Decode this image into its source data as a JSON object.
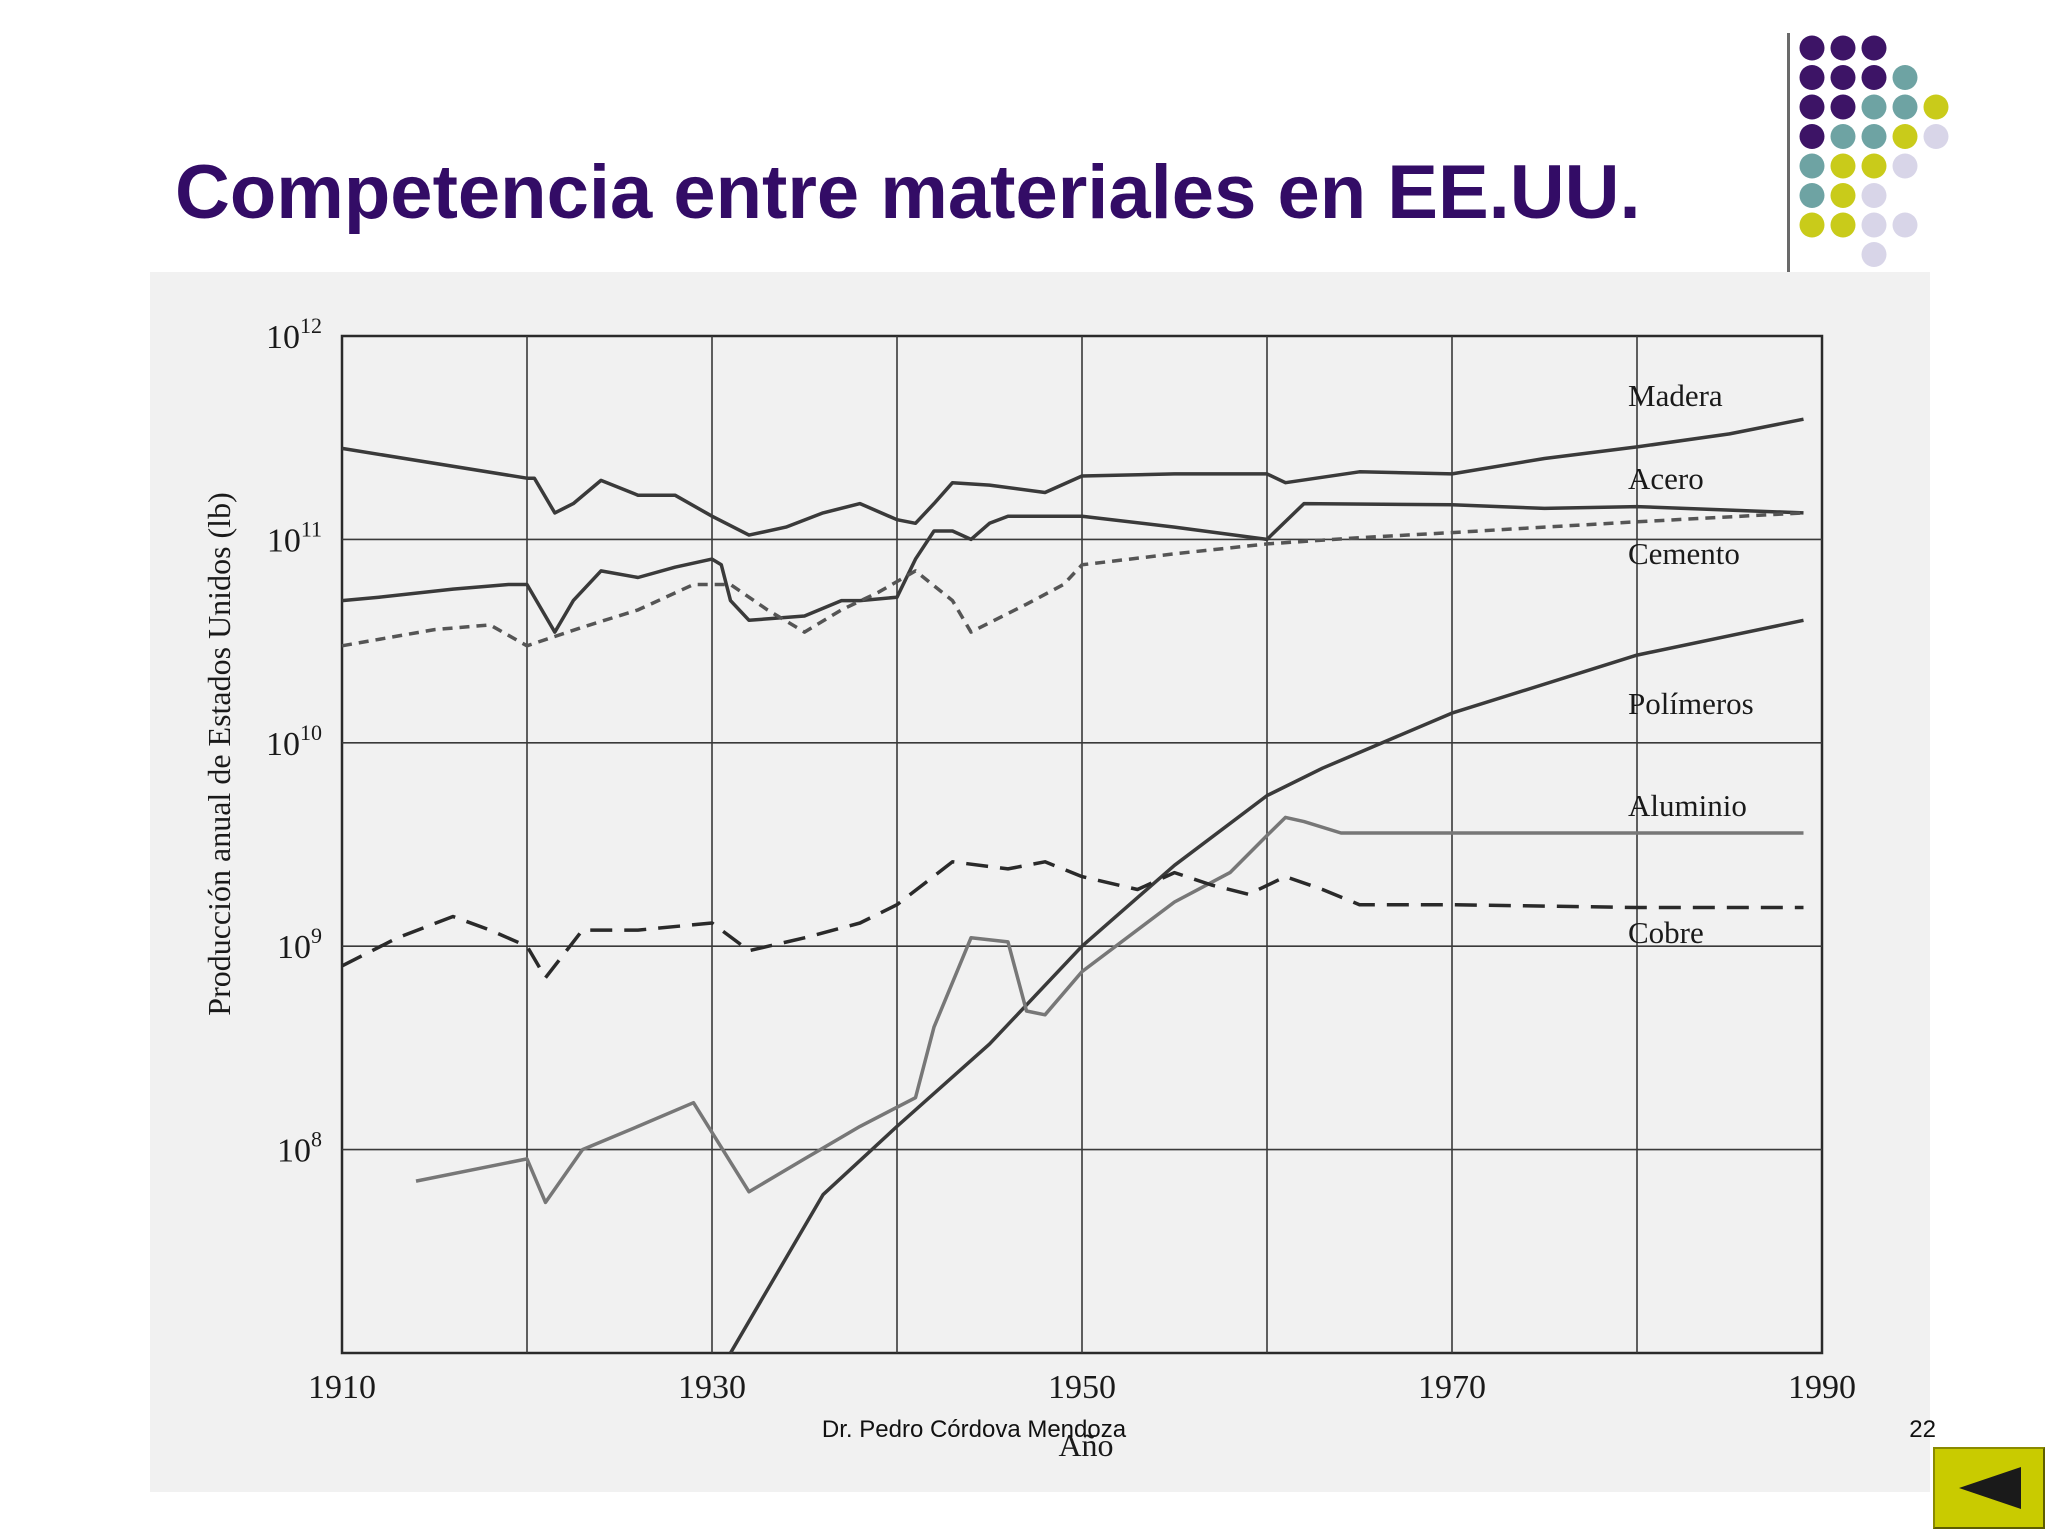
{
  "slide": {
    "title": "Competencia entre materiales en EE.UU.",
    "footer_author": "Dr. Pedro Córdova Mendoza",
    "page_number": "22"
  },
  "colors": {
    "title": "#330c66",
    "dot_palette": [
      "#3d1466",
      "#6ea3a3",
      "#c9cb1a",
      "#d8d5e8"
    ],
    "nav_button": "#c9cb00"
  },
  "nav": {
    "back_icon": "back-triangle-icon"
  },
  "chart_data": {
    "type": "line",
    "title": "",
    "xlabel": "Año",
    "ylabel": "Producción anual de Estados Unidos (lb)",
    "xlim": [
      1910,
      1990
    ],
    "ylim": [
      10000000,
      1000000000000
    ],
    "yscale": "log",
    "x_ticks": [
      "1910",
      "1930",
      "1950",
      "1970",
      "1990"
    ],
    "y_ticks": [
      {
        "base": "10",
        "exp": "8",
        "value": 100000000
      },
      {
        "base": "10",
        "exp": "9",
        "value": 1000000000
      },
      {
        "base": "10",
        "exp": "10",
        "value": 10000000000
      },
      {
        "base": "10",
        "exp": "11",
        "value": 100000000000
      },
      {
        "base": "10",
        "exp": "12",
        "value": 1000000000000
      }
    ],
    "grid": true,
    "series": [
      {
        "name": "Madera",
        "style": "solid",
        "color": "#3a3a3a",
        "points": [
          [
            1910,
            280000000000
          ],
          [
            1920,
            200000000000
          ],
          [
            1920.4,
            200000000000
          ],
          [
            1921.5,
            135000000000
          ],
          [
            1922.5,
            150000000000
          ],
          [
            1924,
            195000000000
          ],
          [
            1926,
            165000000000
          ],
          [
            1928,
            165000000000
          ],
          [
            1930,
            130000000000
          ],
          [
            1932,
            105000000000
          ],
          [
            1934,
            115000000000
          ],
          [
            1936,
            135000000000
          ],
          [
            1938,
            150000000000
          ],
          [
            1940,
            125000000000
          ],
          [
            1941,
            120000000000
          ],
          [
            1942,
            150000000000
          ],
          [
            1943,
            190000000000
          ],
          [
            1945,
            185000000000
          ],
          [
            1948,
            170000000000
          ],
          [
            1950,
            205000000000
          ],
          [
            1955,
            210000000000
          ],
          [
            1960,
            210000000000
          ],
          [
            1961,
            190000000000
          ],
          [
            1965,
            215000000000
          ],
          [
            1970,
            210000000000
          ],
          [
            1975,
            250000000000
          ],
          [
            1980,
            285000000000
          ],
          [
            1985,
            330000000000
          ],
          [
            1989,
            390000000000
          ]
        ]
      },
      {
        "name": "Acero",
        "style": "solid",
        "color": "#3a3a3a",
        "points": [
          [
            1910,
            50000000000
          ],
          [
            1912,
            52000000000
          ],
          [
            1916,
            57000000000
          ],
          [
            1919,
            60000000000
          ],
          [
            1920,
            60000000000
          ],
          [
            1921.5,
            35000000000
          ],
          [
            1922.5,
            50000000000
          ],
          [
            1924,
            70000000000
          ],
          [
            1926,
            65000000000
          ],
          [
            1928,
            73000000000
          ],
          [
            1930,
            80000000000
          ],
          [
            1930.5,
            75000000000
          ],
          [
            1931,
            50000000000
          ],
          [
            1932,
            40000000000
          ],
          [
            1935,
            42000000000
          ],
          [
            1937,
            50000000000
          ],
          [
            1938,
            50000000000
          ],
          [
            1940,
            52000000000
          ],
          [
            1941,
            80000000000
          ],
          [
            1942,
            110000000000
          ],
          [
            1943,
            110000000000
          ],
          [
            1944,
            100000000000
          ],
          [
            1945,
            120000000000
          ],
          [
            1946,
            130000000000
          ],
          [
            1950,
            130000000000
          ],
          [
            1955,
            115000000000
          ],
          [
            1960,
            100000000000
          ],
          [
            1962,
            150000000000
          ],
          [
            1970,
            148000000000
          ],
          [
            1975,
            142000000000
          ],
          [
            1980,
            145000000000
          ],
          [
            1989,
            135000000000
          ]
        ]
      },
      {
        "name": "Cemento",
        "style": "dashed",
        "color": "#555555",
        "points": [
          [
            1910,
            30000000000
          ],
          [
            1915,
            36000000000
          ],
          [
            1918,
            38000000000
          ],
          [
            1920,
            30000000000
          ],
          [
            1923,
            37000000000
          ],
          [
            1926,
            45000000000
          ],
          [
            1929,
            60000000000
          ],
          [
            1931,
            60000000000
          ],
          [
            1933,
            45000000000
          ],
          [
            1935,
            35000000000
          ],
          [
            1937,
            45000000000
          ],
          [
            1939,
            55000000000
          ],
          [
            1941,
            70000000000
          ],
          [
            1943,
            50000000000
          ],
          [
            1944,
            35000000000
          ],
          [
            1947,
            48000000000
          ],
          [
            1949,
            60000000000
          ],
          [
            1950,
            75000000000
          ],
          [
            1955,
            85000000000
          ],
          [
            1960,
            95000000000
          ],
          [
            1965,
            102000000000
          ],
          [
            1970,
            108000000000
          ],
          [
            1975,
            115000000000
          ],
          [
            1980,
            122000000000
          ],
          [
            1989,
            135000000000
          ]
        ]
      },
      {
        "name": "Polímeros",
        "style": "solid",
        "color": "#3a3a3a",
        "points": [
          [
            1931,
            10000000
          ],
          [
            1936,
            60000000
          ],
          [
            1940,
            130000000
          ],
          [
            1945,
            330000000
          ],
          [
            1950,
            1000000000
          ],
          [
            1955,
            2500000000
          ],
          [
            1960,
            5500000000
          ],
          [
            1963,
            7500000000
          ],
          [
            1970,
            14000000000
          ],
          [
            1980,
            27000000000
          ],
          [
            1989,
            40000000000
          ]
        ]
      },
      {
        "name": "Aluminio",
        "style": "solid",
        "color": "#777777",
        "points": [
          [
            1914,
            70000000
          ],
          [
            1920,
            90000000
          ],
          [
            1921,
            55000000
          ],
          [
            1923,
            100000000
          ],
          [
            1926,
            130000000
          ],
          [
            1929,
            170000000
          ],
          [
            1932,
            62000000
          ],
          [
            1935,
            90000000
          ],
          [
            1938,
            130000000
          ],
          [
            1941,
            180000000
          ],
          [
            1942,
            400000000
          ],
          [
            1944,
            1100000000
          ],
          [
            1946,
            1050000000
          ],
          [
            1947,
            480000000
          ],
          [
            1948,
            460000000
          ],
          [
            1950,
            750000000
          ],
          [
            1955,
            1650000000
          ],
          [
            1958,
            2300000000
          ],
          [
            1960,
            3500000000
          ],
          [
            1961,
            4300000000
          ],
          [
            1962,
            4100000000
          ],
          [
            1964,
            3600000000
          ],
          [
            1970,
            3600000000
          ],
          [
            1989,
            3600000000
          ]
        ]
      },
      {
        "name": "Cobre",
        "style": "dashed",
        "color": "#2a2a2a",
        "points": [
          [
            1910,
            800000000
          ],
          [
            1913,
            1100000000
          ],
          [
            1916,
            1400000000
          ],
          [
            1918,
            1200000000
          ],
          [
            1920,
            1000000000
          ],
          [
            1921,
            700000000
          ],
          [
            1923,
            1200000000
          ],
          [
            1926,
            1200000000
          ],
          [
            1930,
            1300000000
          ],
          [
            1932,
            950000000
          ],
          [
            1935,
            1100000000
          ],
          [
            1938,
            1300000000
          ],
          [
            1940,
            1600000000
          ],
          [
            1943,
            2600000000
          ],
          [
            1946,
            2400000000
          ],
          [
            1948,
            2600000000
          ],
          [
            1950,
            2200000000
          ],
          [
            1953,
            1900000000
          ],
          [
            1955,
            2300000000
          ],
          [
            1957,
            2000000000
          ],
          [
            1959,
            1800000000
          ],
          [
            1961,
            2200000000
          ],
          [
            1963,
            1900000000
          ],
          [
            1965,
            1600000000
          ],
          [
            1970,
            1600000000
          ],
          [
            1980,
            1550000000
          ],
          [
            1989,
            1550000000
          ]
        ]
      }
    ],
    "series_labels": [
      "Madera",
      "Acero",
      "Cemento",
      "Polímeros",
      "Aluminio",
      "Cobre"
    ]
  }
}
